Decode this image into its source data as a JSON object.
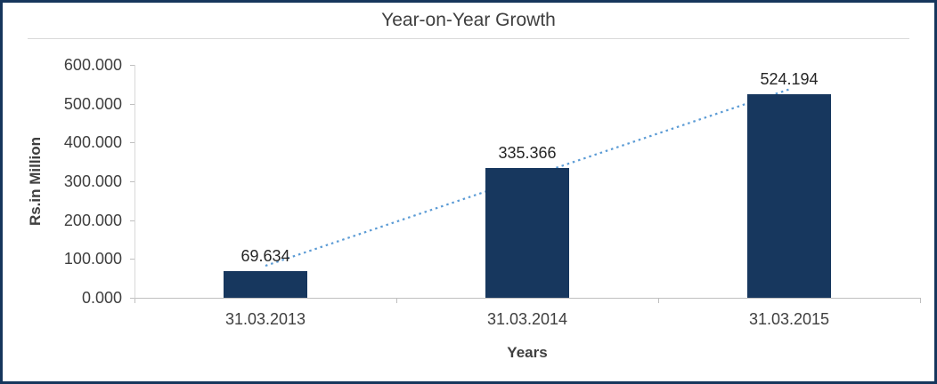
{
  "chart_data": {
    "type": "bar",
    "title": "Year-on-Year Growth",
    "xlabel": "Years",
    "ylabel": "Rs.in Million",
    "categories": [
      "31.03.2013",
      "31.03.2014",
      "31.03.2015"
    ],
    "values": [
      69.634,
      335.366,
      524.194
    ],
    "data_labels": [
      "69.634",
      "335.366",
      "524.194"
    ],
    "ylim": [
      0,
      600
    ],
    "ytick_step": 100,
    "ytick_labels": [
      "0.000",
      "100.000",
      "200.000",
      "300.000",
      "400.000",
      "500.000",
      "600.000"
    ],
    "grid": false,
    "legend": "none",
    "trendline": {
      "type": "linear",
      "style": "dotted",
      "color": "#5B9BD5"
    },
    "colors": {
      "bar": "#17375E",
      "frame_border": "#16365C",
      "text": "#3F3F3F",
      "axis": "#BFBFBF"
    }
  }
}
